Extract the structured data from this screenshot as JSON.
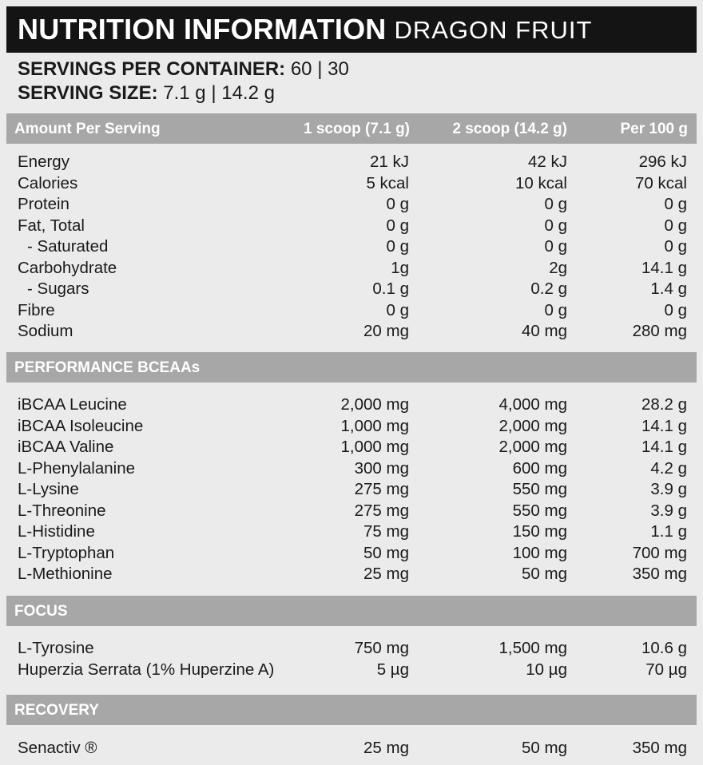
{
  "title": {
    "main": "NUTRITION INFORMATION",
    "flavor": "DRAGON FRUIT"
  },
  "servings": {
    "label": "SERVINGS PER CONTAINER:",
    "value": "60 | 30"
  },
  "serving_size": {
    "label": "SERVING SIZE:",
    "value": "7.1 g | 14.2 g"
  },
  "columns": {
    "name": "Amount Per Serving",
    "c1": "1 scoop (7.1 g)",
    "c2": "2 scoop (14.2 g)",
    "c3": "Per 100 g"
  },
  "nutrients": [
    {
      "name": "Energy",
      "c1": "21 kJ",
      "c2": "42 kJ",
      "c3": "296 kJ"
    },
    {
      "name": "Calories",
      "c1": "5 kcal",
      "c2": "10 kcal",
      "c3": "70 kcal"
    },
    {
      "name": "Protein",
      "c1": "0 g",
      "c2": "0 g",
      "c3": "0 g"
    },
    {
      "name": "Fat, Total",
      "c1": "0 g",
      "c2": "0 g",
      "c3": "0 g"
    },
    {
      "name": "- Saturated",
      "c1": "0 g",
      "c2": "0 g",
      "c3": "0 g"
    },
    {
      "name": "Carbohydrate",
      "c1": "1g",
      "c2": "2g",
      "c3": "14.1 g"
    },
    {
      "name": "- Sugars",
      "c1": "0.1 g",
      "c2": "0.2 g",
      "c3": "1.4 g"
    },
    {
      "name": "Fibre",
      "c1": "0 g",
      "c2": "0 g",
      "c3": "0 g"
    },
    {
      "name": "Sodium",
      "c1": "20 mg",
      "c2": "40 mg",
      "c3": "280 mg"
    }
  ],
  "performance": {
    "title": "PERFORMANCE BCEAAs",
    "rows": [
      {
        "name": "iBCAA Leucine",
        "c1": "2,000 mg",
        "c2": "4,000 mg",
        "c3": "28.2 g"
      },
      {
        "name": "iBCAA Isoleucine",
        "c1": "1,000 mg",
        "c2": "2,000 mg",
        "c3": "14.1 g"
      },
      {
        "name": "iBCAA Valine",
        "c1": "1,000 mg",
        "c2": "2,000 mg",
        "c3": "14.1 g"
      },
      {
        "name": "L-Phenylalanine",
        "c1": "300 mg",
        "c2": "600 mg",
        "c3": "4.2 g"
      },
      {
        "name": "L-Lysine",
        "c1": "275 mg",
        "c2": "550 mg",
        "c3": "3.9 g"
      },
      {
        "name": "L-Threonine",
        "c1": "275 mg",
        "c2": "550 mg",
        "c3": "3.9 g"
      },
      {
        "name": "L-Histidine",
        "c1": "75 mg",
        "c2": "150 mg",
        "c3": "1.1 g"
      },
      {
        "name": "L-Tryptophan",
        "c1": "50 mg",
        "c2": "100 mg",
        "c3": "700 mg"
      },
      {
        "name": "L-Methionine",
        "c1": "25 mg",
        "c2": "50 mg",
        "c3": "350 mg"
      }
    ]
  },
  "focus": {
    "title": "FOCUS",
    "rows": [
      {
        "name": "L-Tyrosine",
        "c1": "750 mg",
        "c2": "1,500 mg",
        "c3": "10.6 g"
      },
      {
        "name": "Huperzia Serrata (1% Huperzine A)",
        "c1": "5 µg",
        "c2": "10 µg",
        "c3": "70 µg"
      }
    ]
  },
  "recovery": {
    "title": "RECOVERY",
    "rows": [
      {
        "name": "Senactiv ®",
        "c1": "25 mg",
        "c2": "50 mg",
        "c3": "350 mg"
      }
    ]
  }
}
